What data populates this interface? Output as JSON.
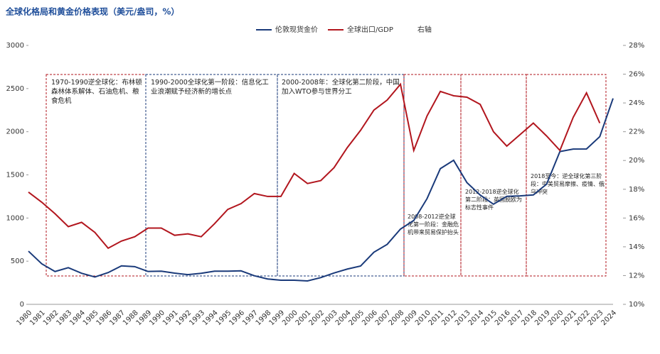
{
  "chart_data": {
    "type": "line",
    "title": "全球化格局和黄金价格表现（美元/盎司，%）",
    "categories": [
      "1980",
      "1981",
      "1982",
      "1983",
      "1984",
      "1985",
      "1986",
      "1987",
      "1988",
      "1989",
      "1990",
      "1991",
      "1992",
      "1993",
      "1994",
      "1995",
      "1996",
      "1997",
      "1998",
      "1999",
      "2000",
      "2001",
      "2002",
      "2003",
      "2004",
      "2005",
      "2006",
      "2007",
      "2008",
      "2009",
      "2010",
      "2011",
      "2012",
      "2013",
      "2014",
      "2015",
      "2016",
      "2017",
      "2018",
      "2019",
      "2020",
      "2021",
      "2022",
      "2023",
      "2024"
    ],
    "series": [
      {
        "name": "伦敦现货金价",
        "color": "#1a3a7a",
        "axis": "y",
        "values": [
          616,
          470,
          380,
          425,
          360,
          317,
          368,
          446,
          437,
          381,
          384,
          362,
          344,
          360,
          384,
          384,
          388,
          331,
          294,
          279,
          279,
          271,
          310,
          363,
          409,
          444,
          604,
          695,
          872,
          972,
          1225,
          1572,
          1669,
          1411,
          1266,
          1160,
          1251,
          1257,
          1268,
          1393,
          1770,
          1799,
          1800,
          1943,
          2386
        ]
      },
      {
        "name": "全球出口/GDP",
        "color": "#b2161e",
        "axis": "y2",
        "values": [
          17.8,
          17.1,
          16.3,
          15.4,
          15.7,
          15.0,
          13.9,
          14.4,
          14.7,
          15.3,
          15.3,
          14.8,
          14.9,
          14.7,
          15.6,
          16.6,
          17.0,
          17.7,
          17.5,
          17.5,
          19.1,
          18.4,
          18.6,
          19.5,
          20.9,
          22.1,
          23.5,
          24.2,
          25.3,
          20.7,
          23.1,
          24.8,
          24.5,
          24.4,
          23.9,
          22.0,
          21.0,
          21.8,
          22.6,
          21.7,
          20.7,
          23.0,
          24.7,
          22.6,
          null
        ]
      }
    ],
    "legend_note": "右轴",
    "ylim": [
      0,
      3000
    ],
    "yticks": [
      0,
      500,
      1000,
      1500,
      2000,
      2500,
      3000
    ],
    "y2lim": [
      10,
      28
    ],
    "y2ticks": [
      {
        "value": 10,
        "label": "10%"
      },
      {
        "value": 12,
        "label": "12%"
      },
      {
        "value": 14,
        "label": "14%"
      },
      {
        "value": 16,
        "label": "16%"
      },
      {
        "value": 18,
        "label": "18%"
      },
      {
        "value": 20,
        "label": "20%"
      },
      {
        "value": 22,
        "label": "22%"
      },
      {
        "value": 24,
        "label": "24%"
      },
      {
        "value": 26,
        "label": "26%"
      },
      {
        "value": 28,
        "label": "28%"
      }
    ],
    "annotations": [
      "1970-1990逆全球化：布林顿森林体系解体、石油危机、粮食危机",
      "1990-2000全球化第一阶段：信息化工业浪潮赋予经济新的增长点",
      "2000-2008年：全球化第二阶段，中国加入WTO参与世界分工",
      "2008-2012逆全球化第一阶段：金融危机带来贸易保护抬头",
      "2012-2018逆全球化第二阶段：英国脱欧为标志性事件",
      "2018至今：逆全球化第三阶段：中美贸易摩擦、疫情、俄乌冲突"
    ]
  }
}
